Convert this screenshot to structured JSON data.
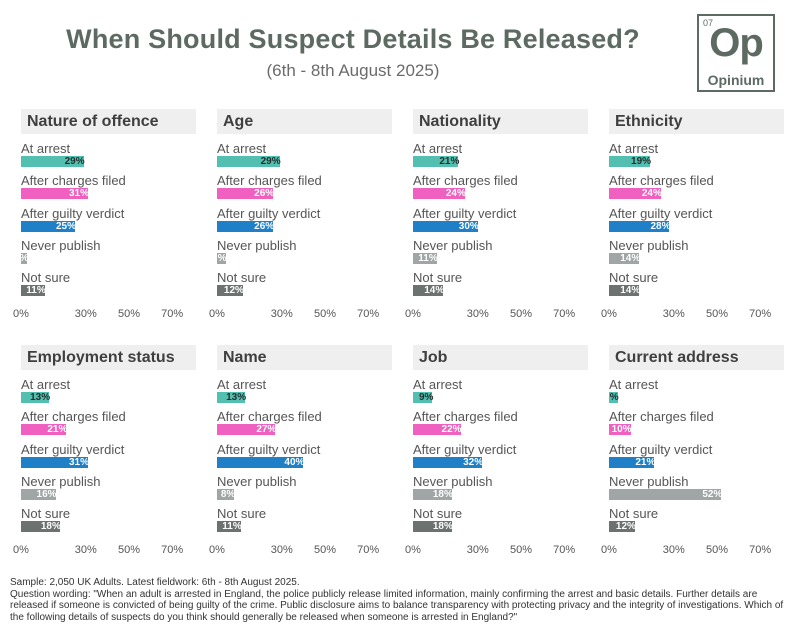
{
  "header": {
    "title": "When Should Suspect Details Be Released?",
    "subtitle": "(6th - 8th August 2025)"
  },
  "logo": {
    "number": "07",
    "symbol": "Op",
    "name": "Opinium"
  },
  "colors": {
    "At arrest": "#52bfb0",
    "After charges filed": "#f060c0",
    "After guilty verdict": "#1f7fc7",
    "Never publish": "#a0a5a5",
    "Not sure": "#6b7270"
  },
  "chart_data": {
    "type": "bar",
    "orientation": "horizontal",
    "categories": [
      "At arrest",
      "After charges filed",
      "After guilty verdict",
      "Never publish",
      "Not sure"
    ],
    "xticks": [
      "0%",
      "30%",
      "50%",
      "70%"
    ],
    "xtick_values": [
      0,
      30,
      50,
      70
    ],
    "xlim": [
      0,
      75
    ],
    "panels": [
      {
        "title": "Nature of offence",
        "values": [
          29,
          31,
          25,
          3,
          11
        ],
        "labels": [
          "29%",
          "31%",
          "25%",
          "%",
          "11%"
        ]
      },
      {
        "title": "Age",
        "values": [
          29,
          26,
          26,
          4,
          12
        ],
        "labels": [
          "29%",
          "26%",
          "26%",
          "%",
          "12%"
        ]
      },
      {
        "title": "Nationality",
        "values": [
          21,
          24,
          30,
          11,
          14
        ],
        "labels": [
          "21%",
          "24%",
          "30%",
          "11%",
          "14%"
        ]
      },
      {
        "title": "Ethnicity",
        "values": [
          19,
          24,
          28,
          14,
          14
        ],
        "labels": [
          "19%",
          "24%",
          "28%",
          "14%",
          "14%"
        ]
      },
      {
        "title": "Employment status",
        "values": [
          13,
          21,
          31,
          16,
          18
        ],
        "labels": [
          "13%",
          "21%",
          "31%",
          "16%",
          "18%"
        ]
      },
      {
        "title": "Name",
        "values": [
          13,
          27,
          40,
          8,
          11
        ],
        "labels": [
          "13%",
          "27%",
          "40%",
          "8%",
          "11%"
        ]
      },
      {
        "title": "Job",
        "values": [
          9,
          22,
          32,
          18,
          18
        ],
        "labels": [
          "9%",
          "22%",
          "32%",
          "18%",
          "18%"
        ]
      },
      {
        "title": "Current address",
        "values": [
          4,
          10,
          21,
          52,
          12
        ],
        "labels": [
          "%",
          "10%",
          "21%",
          "52%",
          "12%"
        ]
      }
    ]
  },
  "footnote": {
    "sample": "Sample: 2,050 UK Adults. Latest fieldwork: 6th - 8th August 2025.",
    "wording": "Question wording: \"When an adult is arrested in England, the police publicly release limited information, mainly confirming the arrest and basic details. Further details are released if someone is convicted of being guilty of the crime. Public disclosure aims to balance transparency with protecting privacy and the integrity of investigations. Which of the following details of suspects do you think should generally be released when someone is arrested in England?\""
  }
}
